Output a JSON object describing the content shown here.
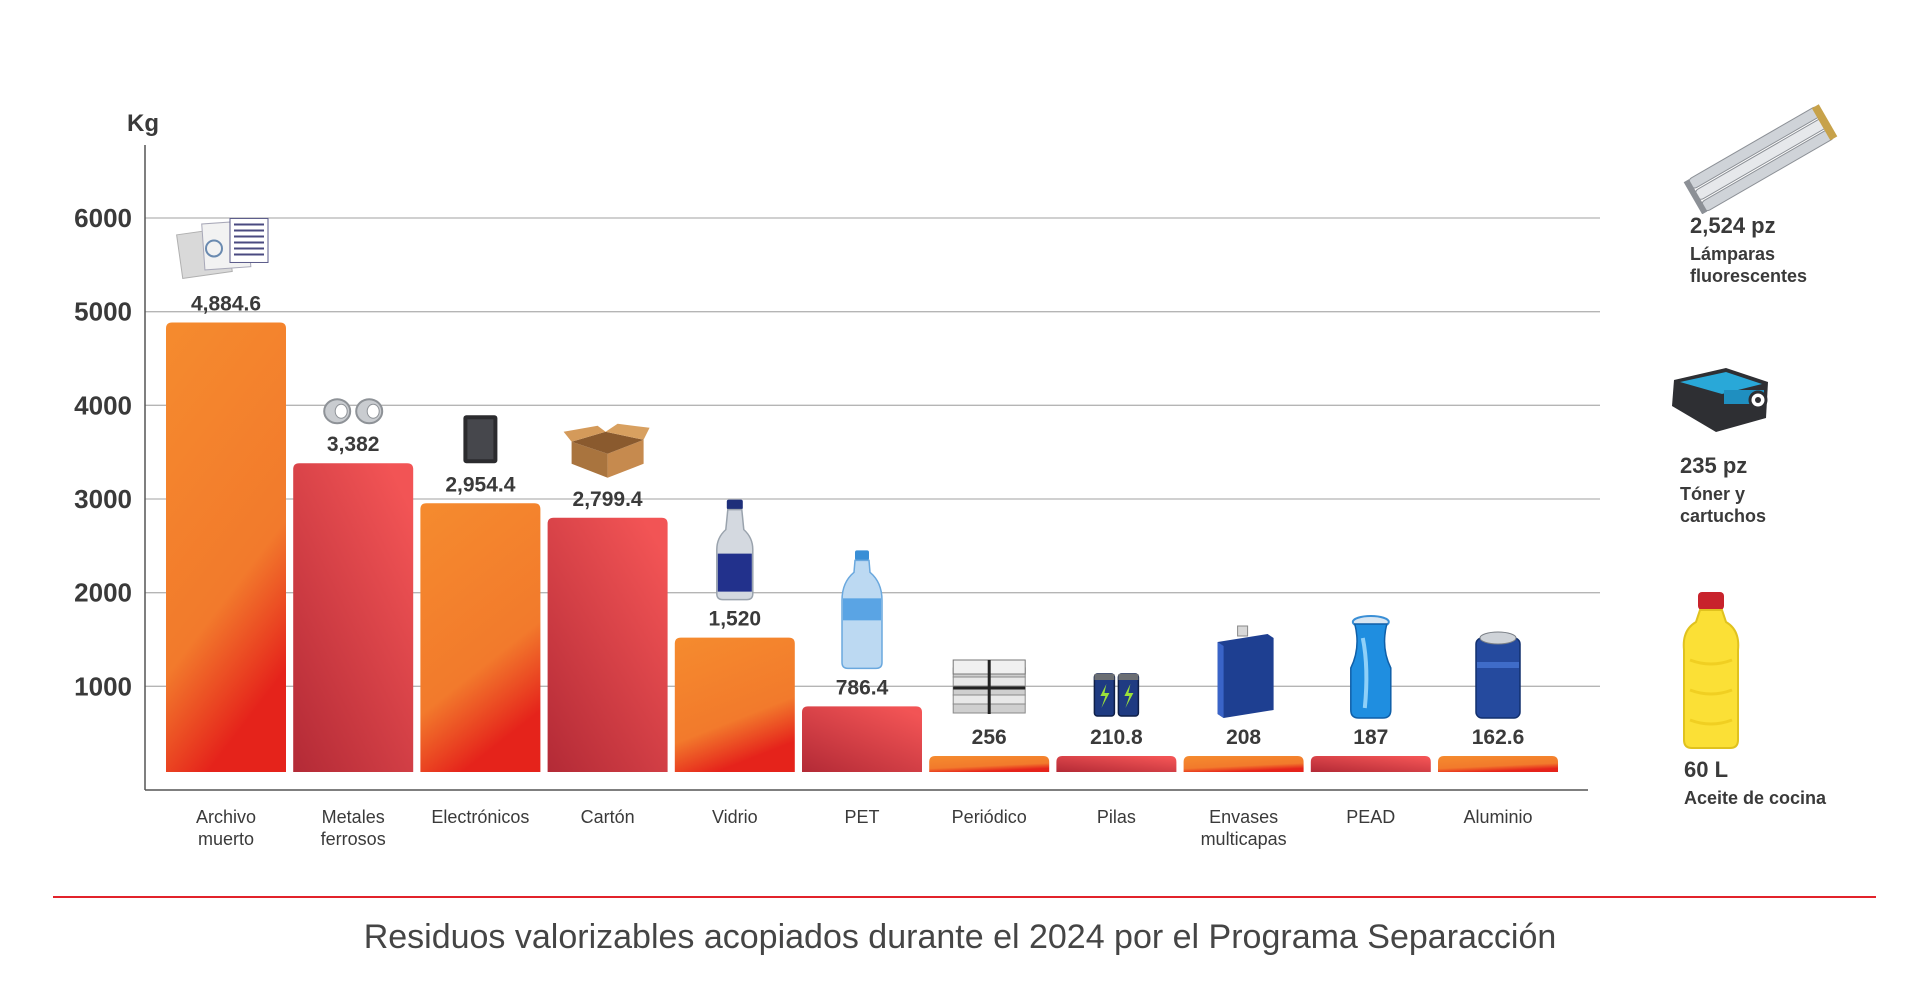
{
  "chart_data": {
    "type": "bar",
    "ylabel": "Kg",
    "ylim": [
      0,
      6500
    ],
    "yticks": [
      1000,
      2000,
      3000,
      4000,
      5000,
      6000
    ],
    "grid": true,
    "categories": [
      "Archivo\nmuerto",
      "Metales\nferrosos",
      "Electrónicos",
      "Cartón",
      "Vidrio",
      "PET",
      "Periódico",
      "Pilas",
      "Envases\nmulticapas",
      "PEAD",
      "Aluminio"
    ],
    "values": [
      4884.6,
      3382,
      2954.4,
      2799.4,
      1520,
      786.4,
      256,
      210.8,
      208,
      187,
      162.6
    ],
    "value_labels": [
      "4,884.6",
      "3,382",
      "2,954.4",
      "2,799.4",
      "1,520",
      "786.4",
      "256",
      "210.8",
      "208",
      "187",
      "162.6"
    ],
    "icons": [
      "documents-icon",
      "metal-pipes-icon",
      "tablet-icon",
      "cardboard-box-icon",
      "glass-bottle-icon",
      "pet-bottle-icon",
      "newspaper-bundle-icon",
      "batteries-icon",
      "tetrapak-icon",
      "hdpe-bottle-icon",
      "aluminum-can-icon"
    ],
    "colors": {
      "orange_top": "#f58b2e",
      "orange_bottom": "#e5231b",
      "red_top": "#f25455",
      "red_bottom": "#b32a36",
      "grid": "#b5b5b5",
      "axis": "#555555"
    }
  },
  "side_items": [
    {
      "value": "2,524 pz",
      "label": "Lámparas\nfluorescentes",
      "icon": "fluorescent-tubes-icon"
    },
    {
      "value": "235 pz",
      "label": "Tóner y\ncartuchos",
      "icon": "toner-cartridge-icon"
    },
    {
      "value": "60 L",
      "label": "Aceite de cocina",
      "icon": "oil-bottle-icon"
    }
  ],
  "caption": "Residuos valorizables acopiados durante el 2024 por el Programa Separacción",
  "divider_color": "#e2232b"
}
